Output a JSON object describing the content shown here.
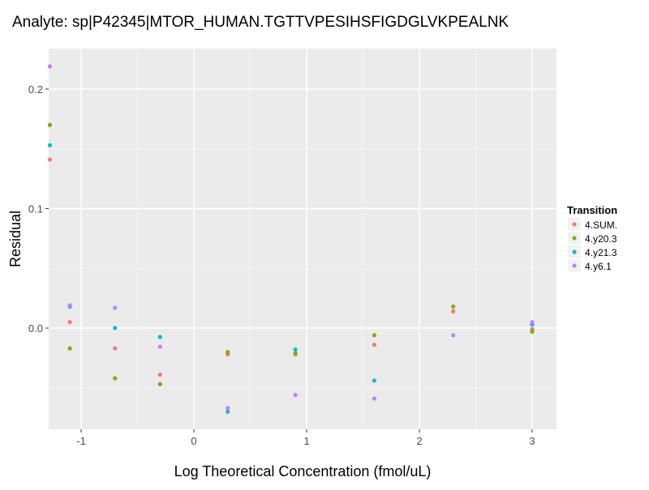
{
  "chart_data": {
    "type": "scatter",
    "title": "Analyte: sp|P42345|MTOR_HUMAN.TGTTVPESIHSFIGDGLVKPEALNK",
    "xlabel": "Log Theoretical Concentration (fmol/uL)",
    "ylabel": "Residual",
    "xlim": [
      -1.288,
      3.216
    ],
    "ylim": [
      -0.0847,
      0.2339
    ],
    "xticks": [
      -1,
      0,
      1,
      2,
      3
    ],
    "xtick_labels": [
      "-1",
      "0",
      "1",
      "2",
      "3"
    ],
    "yticks": [
      0.0,
      0.1,
      0.2
    ],
    "ytick_labels": [
      "0.0",
      "0.1",
      "0.2"
    ],
    "grid": true,
    "legend": {
      "title": "Transition",
      "placement": "right"
    },
    "x": [
      -1.3,
      -1.1,
      -0.7,
      -0.3,
      0.3,
      0.9,
      1.6,
      2.3,
      3.0
    ],
    "series": [
      {
        "name": "4.SUM.",
        "color": "#F8766D",
        "values": [
          0.141,
          0.005,
          -0.017,
          -0.039,
          -0.022,
          -0.022,
          -0.014,
          0.014,
          -0.001
        ]
      },
      {
        "name": "4.y20.3",
        "color": "#7CAE00",
        "values": [
          0.17,
          -0.017,
          -0.042,
          -0.047,
          -0.02,
          -0.021,
          -0.006,
          0.018,
          -0.003
        ]
      },
      {
        "name": "4.y21.3",
        "color": "#00BFC4",
        "values": [
          0.153,
          0.018,
          0.0,
          -0.0075,
          -0.07,
          -0.018,
          -0.044,
          null,
          0.003
        ]
      },
      {
        "name": "4.y6.1",
        "color": "#C77CFF",
        "values": [
          0.219,
          0.019,
          0.017,
          -0.0156,
          -0.067,
          -0.056,
          -0.059,
          -0.006,
          0.005
        ]
      }
    ]
  }
}
